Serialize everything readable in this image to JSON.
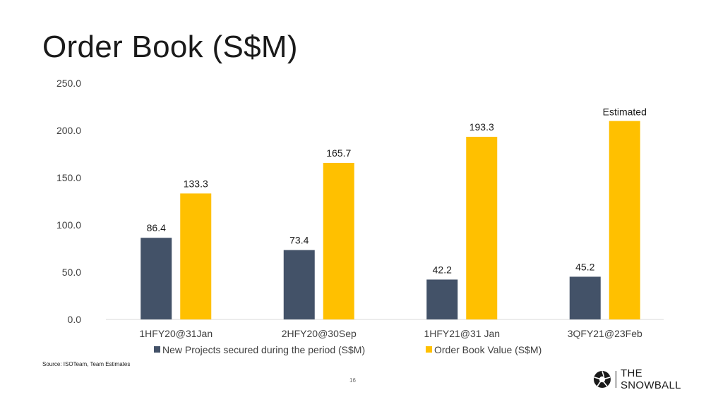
{
  "slide": {
    "title": "Order Book (S$M)",
    "source": "Source: ISOTeam, Team Estimates",
    "page_number": "16",
    "brand_name": "THE SNOWBALL"
  },
  "colors": {
    "series1": "#435268",
    "series2": "#FFC000",
    "text": "#404040",
    "axis": "#d9d9d9"
  },
  "chart_data": {
    "type": "bar",
    "title": "",
    "xlabel": "",
    "ylabel": "",
    "categories": [
      "1HFY20@31Jan",
      "2HFY20@30Sep",
      "1HFY21@31 Jan",
      "3QFY21@23Feb"
    ],
    "series": [
      {
        "name": "New Projects secured during the period (S$M)",
        "values": [
          86.4,
          73.4,
          42.2,
          45.2
        ],
        "labels": [
          "86.4",
          "73.4",
          "42.2",
          "45.2"
        ]
      },
      {
        "name": "Order Book Value (S$M)",
        "values": [
          133.3,
          165.7,
          193.3,
          210.0
        ],
        "labels": [
          "133.3",
          "165.7",
          "193.3",
          ""
        ]
      }
    ],
    "ylim": [
      0,
      250
    ],
    "yticks": [
      0,
      50,
      100,
      150,
      200,
      250
    ],
    "ytick_labels": [
      "0.0",
      "50.0",
      "100.0",
      "150.0",
      "200.0",
      "250.0"
    ],
    "grid": false,
    "legend": "bottom",
    "annotations": [
      {
        "text": "Estimated",
        "category_index": 3,
        "series_index": 1
      }
    ]
  }
}
